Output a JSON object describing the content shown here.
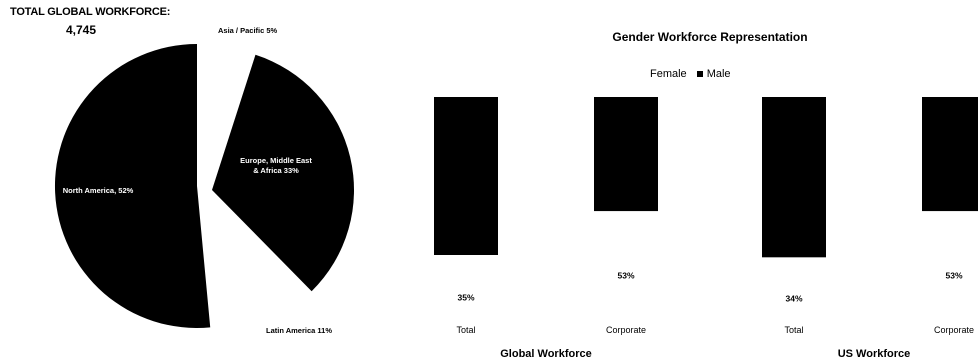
{
  "pie": {
    "total_title": "TOTAL GLOBAL WORKFORCE:",
    "total_value": "4,745"
  },
  "bars": {
    "title": "Gender Workforce Representation",
    "legend_female": "Female",
    "legend_male": "Male"
  },
  "colors": {
    "slice": "#000000",
    "male": "#000000",
    "female": "#ffffff",
    "inner_label": "#ffffff",
    "outer_label": "#000000"
  },
  "chart_data": [
    {
      "type": "pie",
      "title": "TOTAL GLOBAL WORKFORCE:",
      "subtitle": "4,745",
      "slices": [
        {
          "label": "Asia / Pacific",
          "value": 5,
          "display": "Asia / Pacific  5%",
          "color": "#ffffff",
          "exploded": true
        },
        {
          "label": "Europe, Middle East & Africa",
          "value": 33,
          "display_lines": [
            "Europe, Middle East",
            "& Africa  33%"
          ],
          "color": "#000000",
          "exploded": true
        },
        {
          "label": "Latin America",
          "value": 11,
          "display": "Latin America  11%",
          "color": "#ffffff",
          "exploded": false
        },
        {
          "label": "North America",
          "value": 52,
          "display": "North America, 52%",
          "color": "#000000",
          "exploded": false
        }
      ]
    },
    {
      "type": "bar",
      "stacked": true,
      "title": "Gender Workforce Representation",
      "groups": [
        {
          "name": "Global Workforce",
          "categories": [
            "Total",
            "Corporate"
          ]
        },
        {
          "name": "US Workforce",
          "categories": [
            "Total",
            "Corporate"
          ]
        }
      ],
      "categories": [
        "Total",
        "Corporate",
        "Total",
        "Corporate"
      ],
      "series": [
        {
          "name": "Female",
          "values": [
            35,
            53,
            34,
            53
          ],
          "labels": [
            "35%",
            "53%",
            "34%",
            "53%"
          ],
          "color": "#ffffff"
        },
        {
          "name": "Male",
          "values": [
            65,
            47,
            66,
            47
          ],
          "color": "#000000"
        }
      ],
      "ylim": [
        0,
        100
      ],
      "legend": "top"
    }
  ]
}
